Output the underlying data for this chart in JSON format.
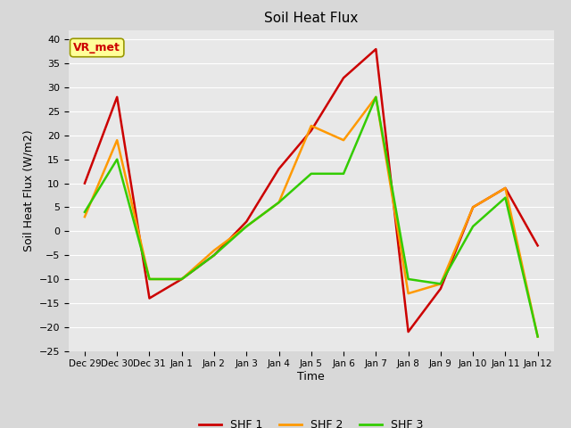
{
  "title": "Soil Heat Flux",
  "xlabel": "Time",
  "ylabel": "Soil Heat Flux (W/m2)",
  "ylim": [
    -25,
    42
  ],
  "yticks": [
    -25,
    -20,
    -15,
    -10,
    -5,
    0,
    5,
    10,
    15,
    20,
    25,
    30,
    35,
    40
  ],
  "background_color": "#d8d8d8",
  "plot_bg_color": "#e8e8e8",
  "annotation_text": "VR_met",
  "annotation_bg": "#ffff99",
  "annotation_border": "#999900",
  "x_labels": [
    "Dec 29",
    "Dec 30",
    "Dec 31",
    "Jan 1",
    "Jan 2",
    "Jan 3",
    "Jan 4",
    "Jan 5",
    "Jan 6",
    "Jan 7",
    "Jan 8",
    "Jan 9",
    "Jan 10",
    "Jan 11",
    "Jan 12"
  ],
  "x_positions": [
    0,
    1,
    2,
    3,
    4,
    5,
    6,
    7,
    8,
    9,
    10,
    11,
    12,
    13,
    14
  ],
  "shf1": [
    10,
    28,
    -14,
    -10,
    -5,
    2,
    13,
    21,
    32,
    38,
    -21,
    -12,
    5,
    9,
    -3
  ],
  "shf2": [
    3,
    19,
    -10,
    -10,
    -4,
    1,
    6,
    22,
    19,
    28,
    -13,
    -11,
    5,
    9,
    -22
  ],
  "shf3": [
    4,
    15,
    -10,
    -10,
    -5,
    1,
    6,
    12,
    12,
    28,
    -10,
    -11,
    1,
    7,
    -22
  ],
  "color_shf1": "#cc0000",
  "color_shf2": "#ff9900",
  "color_shf3": "#33cc00",
  "linewidth": 1.8,
  "legend_labels": [
    "SHF 1",
    "SHF 2",
    "SHF 3"
  ]
}
